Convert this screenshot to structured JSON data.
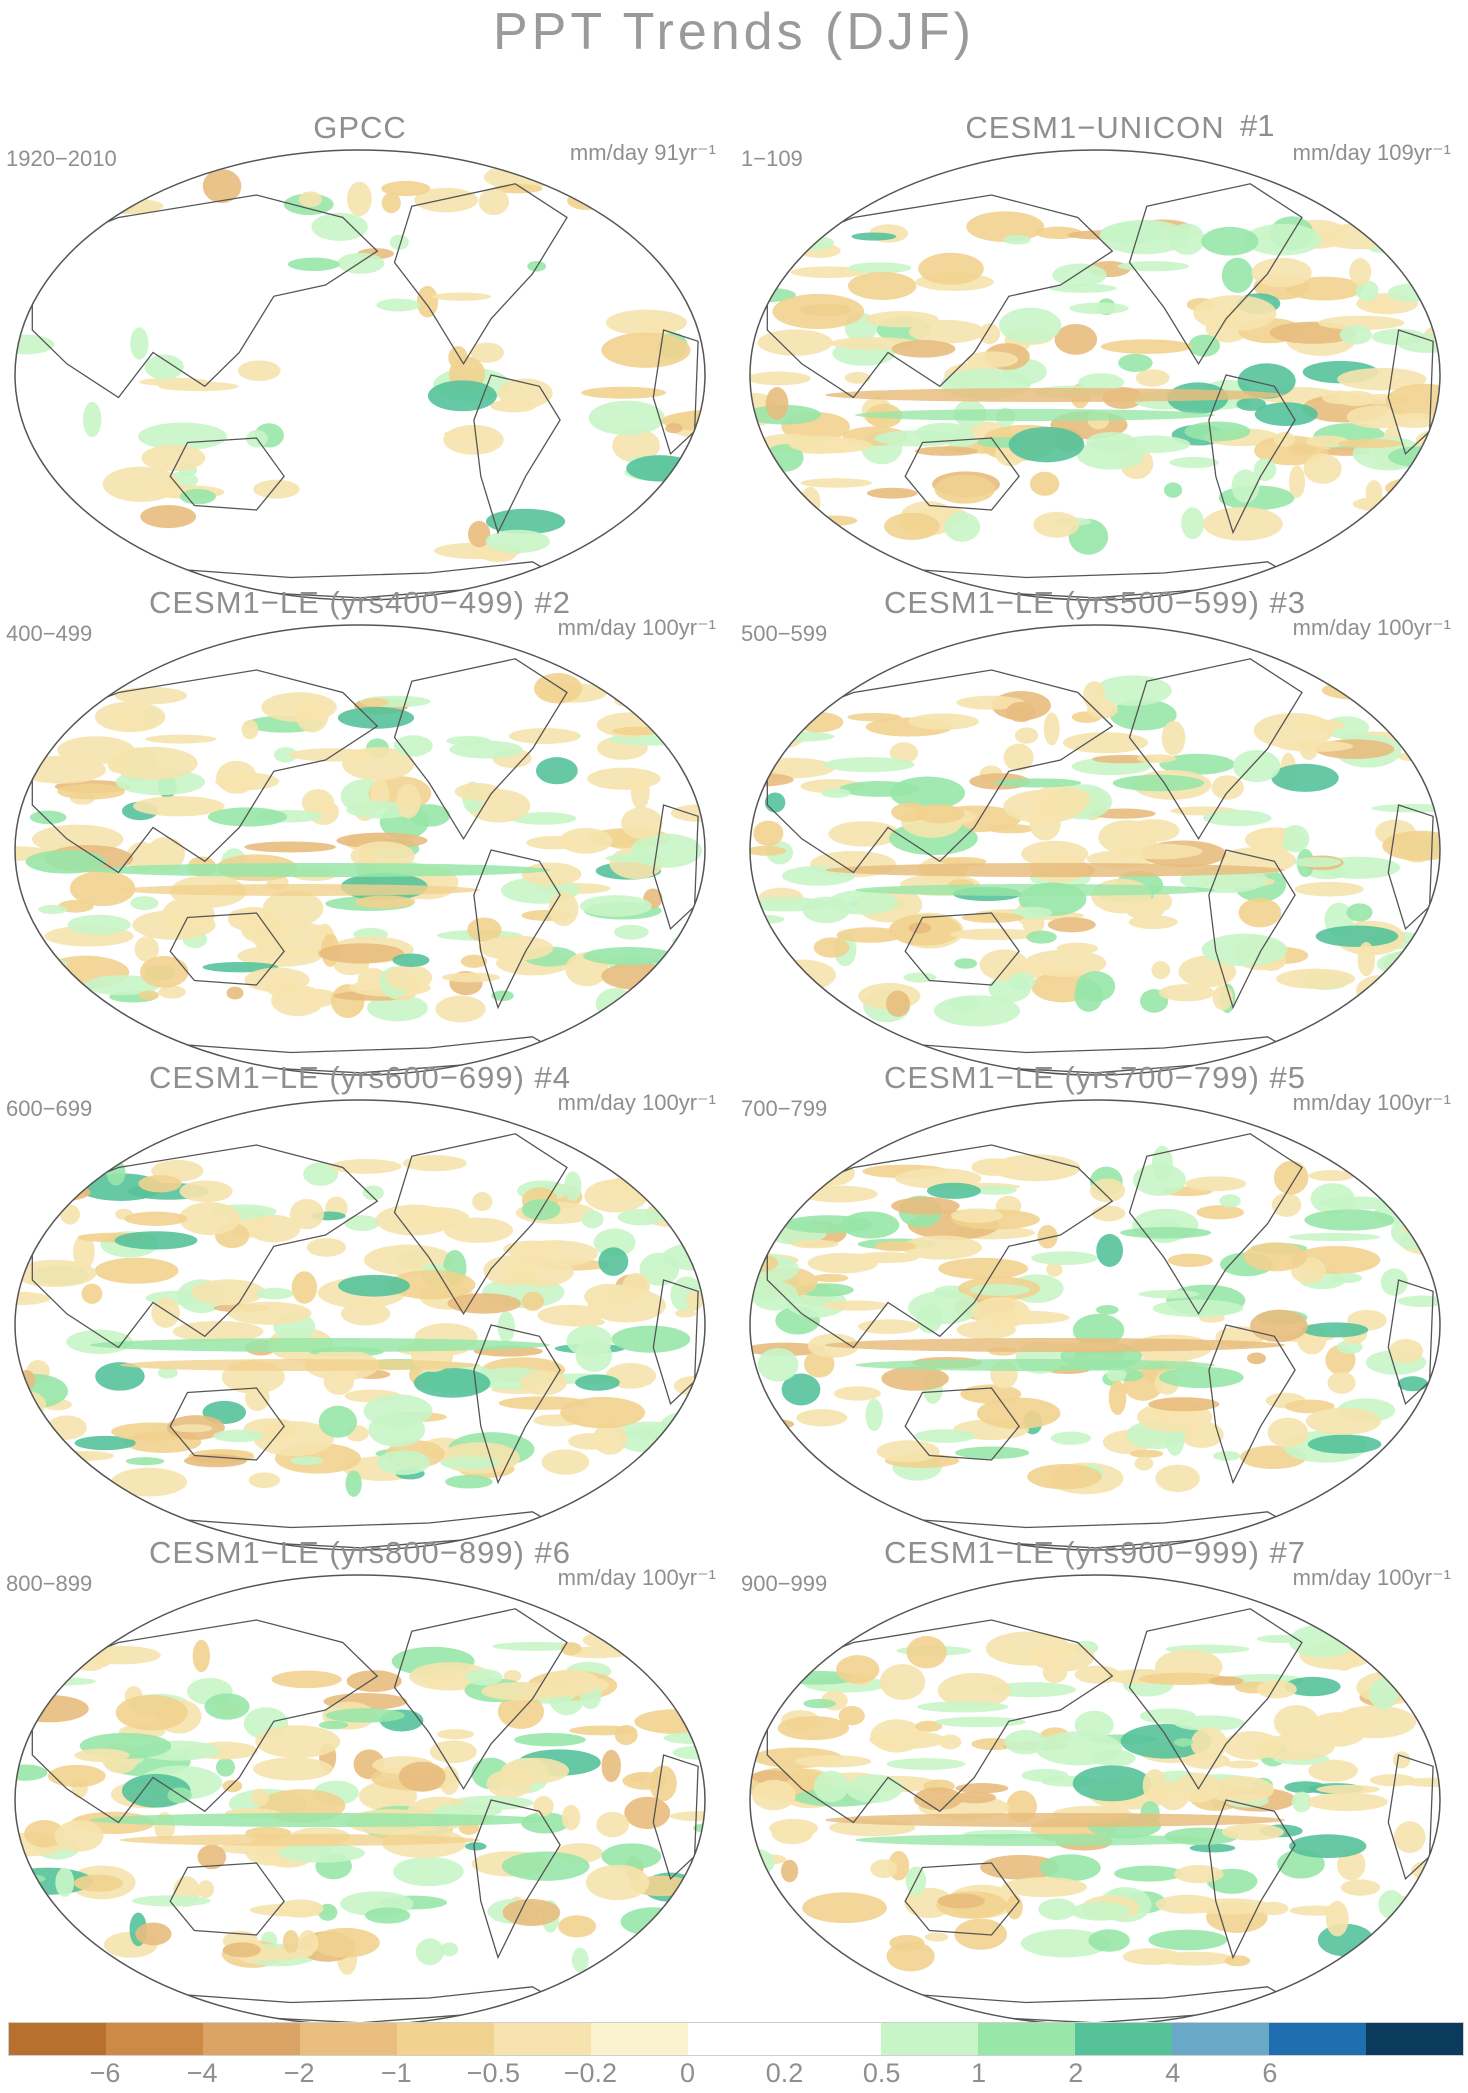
{
  "title": "PPT Trends (DJF)",
  "panels": [
    {
      "title": "GPCC",
      "number": "",
      "period": "1920−2010",
      "unit": "mm/day 91yr⁻¹"
    },
    {
      "title": "CESM1−UNICON",
      "number": "#1",
      "period": "1−109",
      "unit": "mm/day 109yr⁻¹"
    },
    {
      "title": "CESM1−LE (yrs400−499) #2",
      "number": "",
      "period": "400−499",
      "unit": "mm/day 100yr⁻¹"
    },
    {
      "title": "CESM1−LE (yrs500−599) #3",
      "number": "",
      "period": "500−599",
      "unit": "mm/day 100yr⁻¹"
    },
    {
      "title": "CESM1−LE (yrs600−699) #4",
      "number": "",
      "period": "600−699",
      "unit": "mm/day 100yr⁻¹"
    },
    {
      "title": "CESM1−LE (yrs700−799) #5",
      "number": "",
      "period": "700−799",
      "unit": "mm/day 100yr⁻¹"
    },
    {
      "title": "CESM1−LE (yrs800−899) #6",
      "number": "",
      "period": "800−899",
      "unit": "mm/day 100yr⁻¹"
    },
    {
      "title": "CESM1−LE (yrs900−999) #7",
      "number": "",
      "period": "900−999",
      "unit": "mm/day 100yr⁻¹"
    }
  ],
  "colorbar": {
    "colors": [
      "#b8702e",
      "#cc8a44",
      "#dba466",
      "#e8bd7e",
      "#f1d28f",
      "#f6e3ad",
      "#fbf3cd",
      "#ffffff",
      "#ffffff",
      "#c8f5c8",
      "#98e6a8",
      "#55c29a",
      "#6aa8c8",
      "#1f6fb0",
      "#0b3b5c"
    ],
    "labels": [
      "−6",
      "−4",
      "−2",
      "−1",
      "−0.5",
      "−0.2",
      "0",
      "0.2",
      "0.5",
      "1",
      "2",
      "4",
      "6"
    ]
  }
}
